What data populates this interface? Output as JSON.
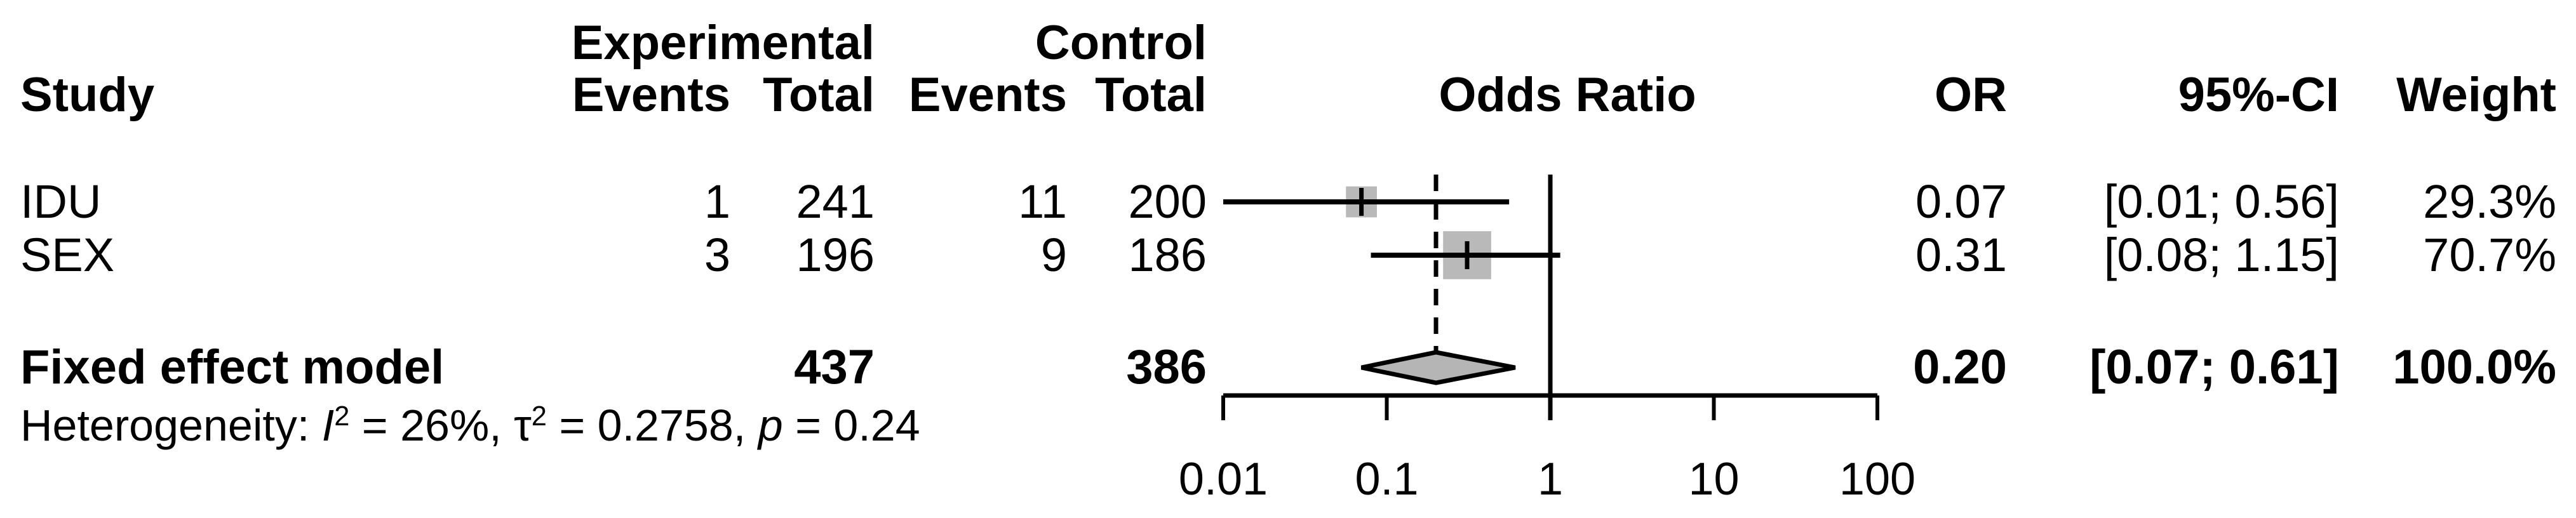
{
  "header": {
    "study": "Study",
    "experimental_group": "Experimental",
    "control_group": "Control",
    "exp_events": "Events",
    "exp_total": "Total",
    "ctrl_events": "Events",
    "ctrl_total": "Total",
    "plot_title": "Odds Ratio",
    "or": "OR",
    "ci": "95%-CI",
    "weight": "Weight"
  },
  "studies": [
    {
      "name": "IDU",
      "exp_events": "1",
      "exp_total": "241",
      "ctrl_events": "11",
      "ctrl_total": "200",
      "or": "0.07",
      "ci": "[0.01; 0.56]",
      "weight": "29.3%"
    },
    {
      "name": "SEX",
      "exp_events": "3",
      "exp_total": "196",
      "ctrl_events": "9",
      "ctrl_total": "186",
      "or": "0.31",
      "ci": "[0.08; 1.15]",
      "weight": "70.7%"
    }
  ],
  "summary": {
    "label": "Fixed effect model",
    "exp_total": "437",
    "ctrl_total": "386",
    "or": "0.20",
    "ci": "[0.07; 0.61]",
    "weight": "100.0%"
  },
  "heterogeneity": {
    "prefix": "Heterogeneity: ",
    "i": "I",
    "i_sup": "2",
    "seg1": " = 26%, ",
    "tau": "τ",
    "tau_sup": "2",
    "seg2": " = 0.2758, ",
    "p": "p",
    "seg3": " = 0.24"
  },
  "colors": {
    "square_fill": "#b9b9b9",
    "diamond_fill": "#b5b5b5",
    "line": "#000000"
  },
  "chart_data": {
    "type": "forest",
    "scale": "log10",
    "effect_measure": "Odds Ratio",
    "x_ticks": [
      0.01,
      0.1,
      1,
      10,
      100
    ],
    "x_tick_labels": [
      "0.01",
      "0.1",
      "1",
      "10",
      "100"
    ],
    "xlim": [
      0.01,
      100
    ],
    "ref_line": 1,
    "pooled_dashed_line": 0.2,
    "studies": [
      {
        "label": "IDU",
        "or": 0.07,
        "ci_low": 0.01,
        "ci_high": 0.56,
        "weight_pct": 29.3
      },
      {
        "label": "SEX",
        "or": 0.31,
        "ci_low": 0.08,
        "ci_high": 1.15,
        "weight_pct": 70.7
      }
    ],
    "summary": {
      "label": "Fixed effect model",
      "model": "fixed",
      "or": 0.2,
      "ci_low": 0.07,
      "ci_high": 0.61,
      "weight_pct": 100.0
    },
    "heterogeneity": {
      "I2_pct": 26,
      "tau2": 0.2758,
      "p": 0.24
    }
  }
}
